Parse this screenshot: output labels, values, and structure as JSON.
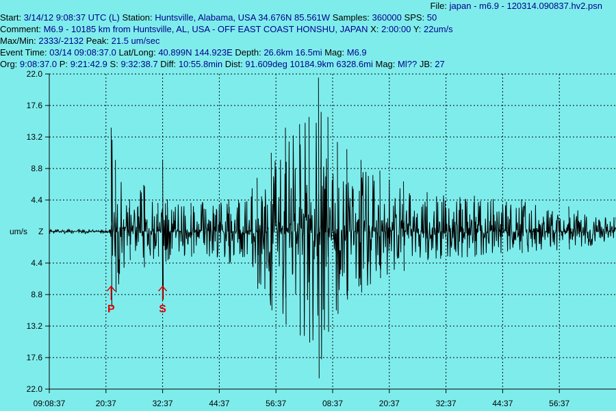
{
  "header": {
    "file_label": "File:",
    "file_value": "japan - m6.9 - 120314.090837.hv2.psn",
    "line1_label_start": "Start:",
    "line1_start": "3/14/12  9:08:37 UTC (L)",
    "line1_label_station": "Station:",
    "line1_station": "Huntsville, Alabama, USA 34.676N 85.561W",
    "line1_label_samples": "Samples:",
    "line1_samples": "360000",
    "line1_label_sps": "SPS:",
    "line1_sps": "50",
    "line2_label_comment": "Comment:",
    "line2_comment": "M6.9 - 10185 km from Huntsville, AL, USA - OFF EAST COAST HONSHU, JAPAN",
    "line2_label_x": "X:",
    "line2_x": "2:00:00",
    "line2_label_y": "Y:",
    "line2_y": "22um/s",
    "line3_label_maxmin": "Max/Min:",
    "line3_maxmin": "2333/-2132",
    "line3_label_peak": "Peak:",
    "line3_peak": "21.5 um/sec",
    "line4_label_event": "Event Time:",
    "line4_event": "03/14 09:08:37.0",
    "line4_label_latlong": "Lat/Long:",
    "line4_latlong": "40.899N 144.923E",
    "line4_label_depth": "Depth:",
    "line4_depth": "26.6km 16.5mi",
    "line4_label_mag": "Mag:",
    "line4_mag": "M6.9",
    "line5_label_org": "Org:",
    "line5_org": "9:08:37.0",
    "line5_label_p": "P:",
    "line5_p": "9:21:42.9",
    "line5_label_s": "S:",
    "line5_s": "9:32:38.7",
    "line5_label_diff": "Diff:",
    "line5_diff": "10:55.8min",
    "line5_label_dist": "Dist:",
    "line5_dist": "91.609deg 10184.9km 6328.6mi",
    "line5_label_mag": "Mag:",
    "line5_mag": "Ml??",
    "line5_label_jb": "JB:",
    "line5_jb": "27"
  },
  "chart_data": {
    "type": "line",
    "title": "",
    "ylabel": "um/s",
    "channel": "Z",
    "ylim": [
      -22.0,
      22.0
    ],
    "y_tick_labels_top": [
      "22.0",
      "17.6",
      "13.2",
      "8.8",
      "4.4"
    ],
    "y_tick_labels_bottom": [
      "4.4",
      "8.8",
      "13.2",
      "17.6",
      "22.0"
    ],
    "y_tick_values": [
      22.0,
      17.6,
      13.2,
      8.8,
      4.4,
      0,
      -4.4,
      -8.8,
      -13.2,
      -17.6,
      -22.0
    ],
    "x_tick_labels": [
      "09:08:37",
      "20:37",
      "32:37",
      "44:37",
      "56:37",
      "08:37",
      "20:37",
      "32:37",
      "44:37",
      "56:37"
    ],
    "x_range_minutes": [
      0,
      120
    ],
    "grid": true,
    "markers": [
      {
        "label": "P",
        "time_min": 13.1
      },
      {
        "label": "S",
        "time_min": 24.0
      }
    ],
    "series": [
      {
        "envelope_time_min": [
          0,
          12.9,
          13.1,
          14,
          17,
          20,
          23,
          24,
          25,
          30,
          38,
          44,
          47,
          50,
          53,
          55,
          57,
          59,
          61,
          63,
          66,
          70,
          75,
          80,
          90,
          100,
          110,
          120
        ],
        "envelope_pos": [
          0.3,
          0.3,
          14.5,
          10.0,
          4.5,
          6.5,
          4.0,
          10.0,
          4.5,
          4.0,
          4.5,
          7.5,
          11.0,
          14.5,
          15.0,
          16.0,
          21.5,
          16.0,
          12.5,
          11.5,
          10.0,
          8.5,
          7.0,
          5.5,
          5.0,
          4.5,
          3.5,
          2.0
        ],
        "envelope_neg": [
          -0.3,
          -0.3,
          -10.5,
          -8.5,
          -4.0,
          -5.0,
          -3.5,
          -9.5,
          -4.0,
          -3.5,
          -4.5,
          -8.0,
          -11.0,
          -13.0,
          -14.5,
          -15.5,
          -20.5,
          -14.0,
          -11.5,
          -9.5,
          -8.5,
          -6.5,
          -5.5,
          -4.0,
          -3.5,
          -3.0,
          -2.5,
          -1.5
        ]
      }
    ]
  }
}
